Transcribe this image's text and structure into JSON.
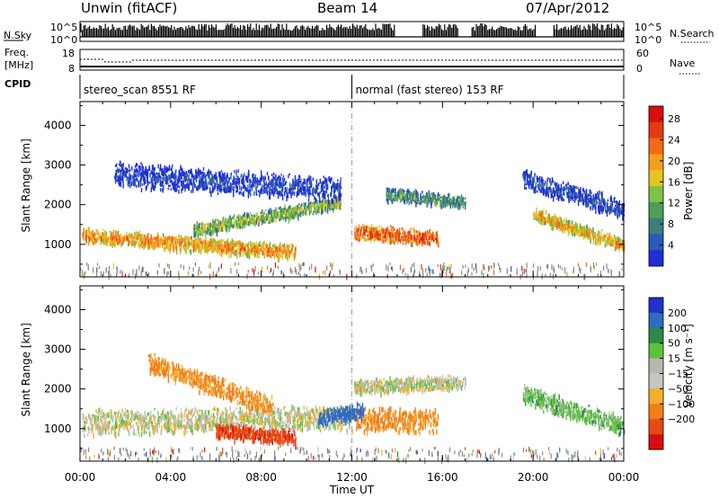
{
  "header": {
    "station": "Unwin (fitACF)",
    "beam": "Beam 14",
    "date": "07/Apr/2012"
  },
  "status_panel": {
    "nsky_label": "N.Sky",
    "nsearch_label": "N.Search",
    "freq_label": "Freq.",
    "freq_unit": "[MHz]",
    "nave_label": "Nave",
    "cpid_label": "CPID",
    "noise_axis_ticks": [
      "10^5",
      "10^0"
    ],
    "freq_axis_ticks": [
      "18",
      "8"
    ],
    "nave_axis_ticks": [
      "60",
      "0"
    ],
    "cpid_segments": [
      {
        "label": "stereo_scan 8551 RF",
        "start_hour": 0,
        "end_hour": 12
      },
      {
        "label": "normal (fast stereo) 153 RF",
        "start_hour": 12,
        "end_hour": 24
      }
    ]
  },
  "colors": {
    "power_scale": [
      "#1e2fd6",
      "#2a5bb8",
      "#3f7d7a",
      "#4e9e58",
      "#7ec243",
      "#e6c41e",
      "#f4a01c",
      "#f26a14",
      "#e43a12",
      "#d80e0e"
    ],
    "velocity_scale": [
      "#1e33c8",
      "#2e6cc0",
      "#2b8a4a",
      "#5cc23c",
      "#b8b8b0",
      "#c6c6c0",
      "#f4b02a",
      "#f27e1a",
      "#e84a14",
      "#d80e0e"
    ],
    "ground_scatter": "#b8b8b0"
  },
  "chart_data": [
    {
      "type": "heatmap",
      "title": "Power",
      "xlabel": "Time UT",
      "ylabel": "Slant Range [km]",
      "x_ticks": [
        "00:00",
        "04:00",
        "08:00",
        "12:00",
        "16:00",
        "20:00",
        "00:00"
      ],
      "y_ticks": [
        1000,
        2000,
        3000,
        4000
      ],
      "xlim_hours": [
        0,
        24
      ],
      "ylim_km": [
        180,
        4600
      ],
      "colorbar": {
        "label": "Power [dB]",
        "ticks": [
          4,
          8,
          12,
          16,
          20,
          24,
          28
        ]
      },
      "bands": [
        {
          "start_hour": 0.1,
          "end_hour": 9.5,
          "start_km": 1250,
          "end_km": 850,
          "width_km": 300,
          "value_db": 22
        },
        {
          "start_hour": 5.0,
          "end_hour": 11.5,
          "start_km": 1400,
          "end_km": 2100,
          "width_km": 260,
          "value_db": 15
        },
        {
          "start_hour": 12.1,
          "end_hour": 15.8,
          "start_km": 1350,
          "end_km": 1200,
          "width_km": 320,
          "value_db": 25
        },
        {
          "start_hour": 13.5,
          "end_hour": 17.0,
          "start_km": 2300,
          "end_km": 2100,
          "width_km": 260,
          "value_db": 12
        },
        {
          "start_hour": 20.0,
          "end_hour": 24.0,
          "start_km": 1800,
          "end_km": 1000,
          "width_km": 260,
          "value_db": 20
        },
        {
          "start_hour": 1.5,
          "end_hour": 11.5,
          "start_km": 2800,
          "end_km": 2400,
          "width_km": 500,
          "value_db": 5
        },
        {
          "start_hour": 19.5,
          "end_hour": 24.0,
          "start_km": 2700,
          "end_km": 1900,
          "width_km": 400,
          "value_db": 6
        }
      ]
    },
    {
      "type": "heatmap",
      "title": "Velocity",
      "xlabel": "Time UT",
      "ylabel": "Slant Range [km]",
      "x_ticks": [
        "00:00",
        "04:00",
        "08:00",
        "12:00",
        "16:00",
        "20:00",
        "00:00"
      ],
      "y_ticks": [
        1000,
        2000,
        3000,
        4000
      ],
      "xlim_hours": [
        0,
        24
      ],
      "ylim_km": [
        180,
        4600
      ],
      "colorbar": {
        "label": "Velocity [m s⁻¹]",
        "ticks": [
          200,
          100,
          50,
          15,
          -15,
          -50,
          -100,
          -200
        ]
      },
      "bands": [
        {
          "start_hour": 0.1,
          "end_hour": 12.0,
          "start_km": 1200,
          "end_km": 1300,
          "width_km": 500,
          "value_ms": 0
        },
        {
          "start_hour": 12.1,
          "end_hour": 17.0,
          "start_km": 2100,
          "end_km": 2200,
          "width_km": 300,
          "value_ms": 0
        },
        {
          "start_hour": 12.1,
          "end_hour": 15.8,
          "start_km": 1300,
          "end_km": 1200,
          "width_km": 500,
          "value_ms": -60
        },
        {
          "start_hour": 6.0,
          "end_hour": 9.5,
          "start_km": 1000,
          "end_km": 800,
          "width_km": 300,
          "value_ms": -180
        },
        {
          "start_hour": 3.0,
          "end_hour": 8.5,
          "start_km": 2700,
          "end_km": 1600,
          "width_km": 400,
          "value_ms": -60
        },
        {
          "start_hour": 19.5,
          "end_hour": 24.0,
          "start_km": 1900,
          "end_km": 1100,
          "width_km": 400,
          "value_ms": 30
        },
        {
          "start_hour": 10.5,
          "end_hour": 12.5,
          "start_km": 1300,
          "end_km": 1500,
          "width_km": 300,
          "value_ms": 150
        }
      ]
    }
  ]
}
